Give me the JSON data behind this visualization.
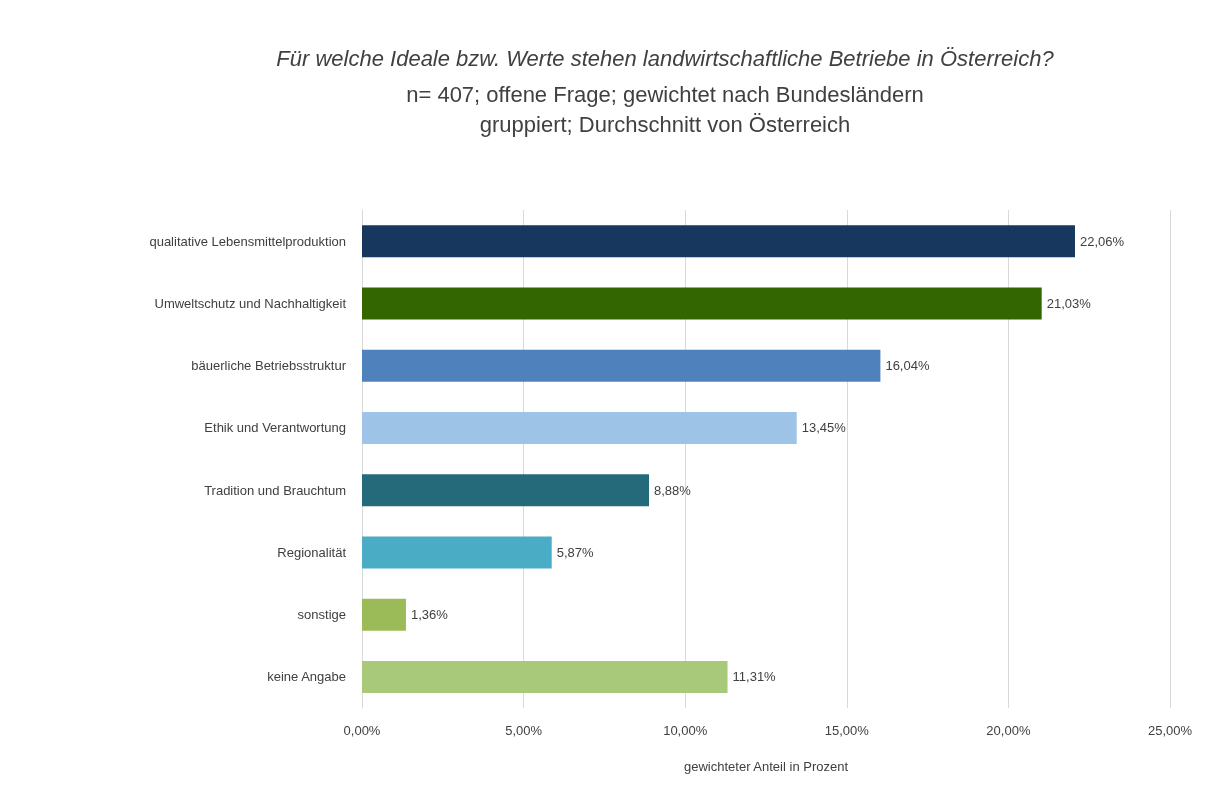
{
  "chart_data": {
    "type": "bar",
    "orientation": "horizontal",
    "title": "Für welche Ideale bzw. Werte stehen landwirtschaftliche Betriebe in Österreich?",
    "subtitle": "n= 407; offene Frage; gewichtet nach Bundesländern\ngruppiert; Durchschnitt von Österreich",
    "xlabel": "gewichteter Anteil in Prozent",
    "categories": [
      "qualitative Lebensmittelproduktion",
      "Umweltschutz und Nachhaltigkeit",
      "bäuerliche Betriebsstruktur",
      "Ethik und Verantwortung",
      "Tradition und Brauchtum",
      "Regionalität",
      "sonstige",
      "keine Angabe"
    ],
    "values": [
      22.06,
      21.03,
      16.04,
      13.45,
      8.88,
      5.87,
      1.36,
      11.31
    ],
    "value_labels": [
      "22,06%",
      "21,03%",
      "16,04%",
      "13,45%",
      "8,88%",
      "5,87%",
      "1,36%",
      "11,31%"
    ],
    "colors": [
      "#17375e",
      "#336600",
      "#4f81bd",
      "#9dc3e6",
      "#256a7a",
      "#4bacc6",
      "#9bbb59",
      "#a9c97a"
    ],
    "xlim": [
      0,
      25
    ],
    "xticks": [
      {
        "value": 0,
        "label": "0,00%"
      },
      {
        "value": 5,
        "label": "5,00%"
      },
      {
        "value": 10,
        "label": "10,00%"
      },
      {
        "value": 15,
        "label": "15,00%"
      },
      {
        "value": 20,
        "label": "20,00%"
      },
      {
        "value": 25,
        "label": "25,00%"
      }
    ],
    "grid": "x"
  }
}
